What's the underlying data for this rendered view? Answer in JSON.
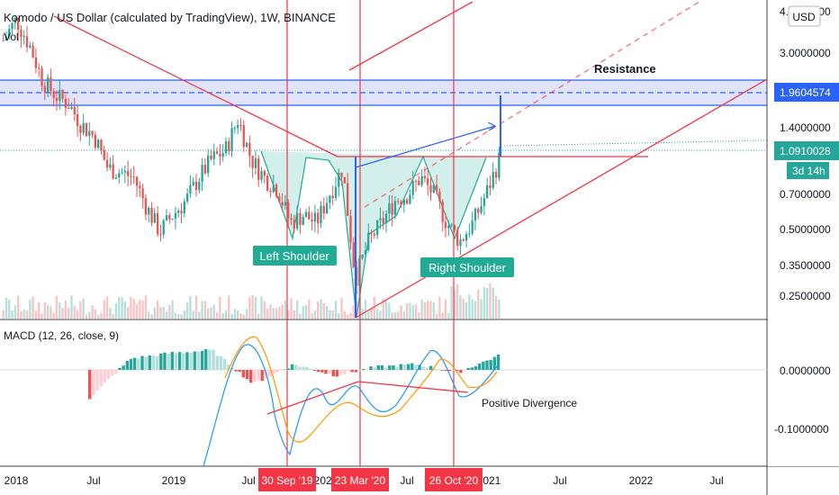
{
  "header": {
    "title": "Komodo / US Dollar (calculated by TradingView), 1W, BINANCE",
    "vol_label": "Vol",
    "currency_button": "USD"
  },
  "price_axis": {
    "ticks": [
      "4.5000000",
      "3.0000000",
      "1.4000000",
      "0.7000000",
      "0.5000000",
      "0.3500000",
      "0.2500000"
    ],
    "current_price": "1.0910028",
    "resistance_price": "1.9604574",
    "countdown": "3d 14h"
  },
  "macd_axis": {
    "ticks": [
      "0.0000000",
      "-0.1000000"
    ]
  },
  "time_axis": {
    "ticks": [
      "2018",
      "Jul",
      "2019",
      "Jul",
      "2020",
      "Jul",
      "2021",
      "Jul",
      "2022",
      "Jul"
    ],
    "date_badges": [
      "30 Sep '19",
      "23 Mar '20",
      "26 Oct '20"
    ]
  },
  "annotations": {
    "resistance": "Resistance",
    "left_shoulder": "Left Shoulder",
    "right_shoulder": "Right Shoulder",
    "positive_divergence": "Positive Divergence"
  },
  "macd_label": "MACD (12, 26, close, 9)",
  "colors": {
    "up": "#26a69a",
    "down": "#ef5350",
    "annotation_red": "#f23645",
    "blue": "#2962ff",
    "resistance_fill": "#dfe3fb",
    "shoulder_fill": "#c8ebe6",
    "tag_teal": "#22ab94",
    "macd_line": "#2196f3",
    "signal_line": "#ff9800"
  },
  "chart_data": {
    "type": "candlestick",
    "symbol": "KMD/USD",
    "interval": "1W",
    "exchange": "BINANCE",
    "y_scale": "log",
    "x_range": [
      "2017-12-01",
      "2022-11-30"
    ],
    "close_series": {
      "dates": [
        "2017-12",
        "2018-01",
        "2018-02",
        "2018-03",
        "2018-04",
        "2018-05",
        "2018-06",
        "2018-07",
        "2018-08",
        "2018-09",
        "2018-10",
        "2018-11",
        "2018-12",
        "2019-01",
        "2019-02",
        "2019-03",
        "2019-04",
        "2019-05",
        "2019-06",
        "2019-07",
        "2019-08",
        "2019-09",
        "2019-10",
        "2019-11",
        "2019-12",
        "2020-01",
        "2020-02",
        "2020-03",
        "2020-04",
        "2020-05",
        "2020-06",
        "2020-07",
        "2020-08",
        "2020-09",
        "2020-10",
        "2020-11",
        "2020-12",
        "2021-01",
        "2021-02"
      ],
      "values": [
        4.0,
        5.0,
        3.8,
        2.6,
        2.2,
        2.0,
        1.6,
        1.4,
        1.0,
        0.95,
        0.9,
        0.65,
        0.5,
        0.6,
        0.7,
        0.9,
        1.1,
        1.2,
        1.7,
        1.1,
        0.9,
        0.8,
        0.55,
        0.6,
        0.55,
        0.75,
        1.0,
        0.3,
        0.45,
        0.55,
        0.7,
        0.75,
        0.9,
        0.75,
        0.55,
        0.45,
        0.55,
        0.75,
        1.09
      ]
    },
    "macd_series": {
      "dates": [
        "2018-06",
        "2019-01",
        "2019-04",
        "2019-07",
        "2019-10",
        "2020-01",
        "2020-03",
        "2020-06",
        "2020-09",
        "2020-11",
        "2021-02"
      ],
      "histogram": [
        -0.1,
        0.04,
        0.06,
        0.07,
        -0.05,
        0.02,
        -0.02,
        0.01,
        0.02,
        -0.01,
        0.05
      ],
      "macd": [
        -0.15,
        0.02,
        0.09,
        0.1,
        -0.08,
        0.01,
        -0.06,
        0.03,
        0.01,
        -0.03,
        0.0
      ],
      "signal": [
        -0.12,
        0.01,
        0.07,
        0.11,
        -0.05,
        -0.02,
        -0.03,
        0.0,
        0.01,
        -0.02,
        -0.02
      ]
    },
    "levels": {
      "current_price": 1.0910028,
      "resistance": 1.9604574
    },
    "vertical_markers": [
      "2019-09-30",
      "2020-03-23",
      "2020-10-26"
    ]
  }
}
